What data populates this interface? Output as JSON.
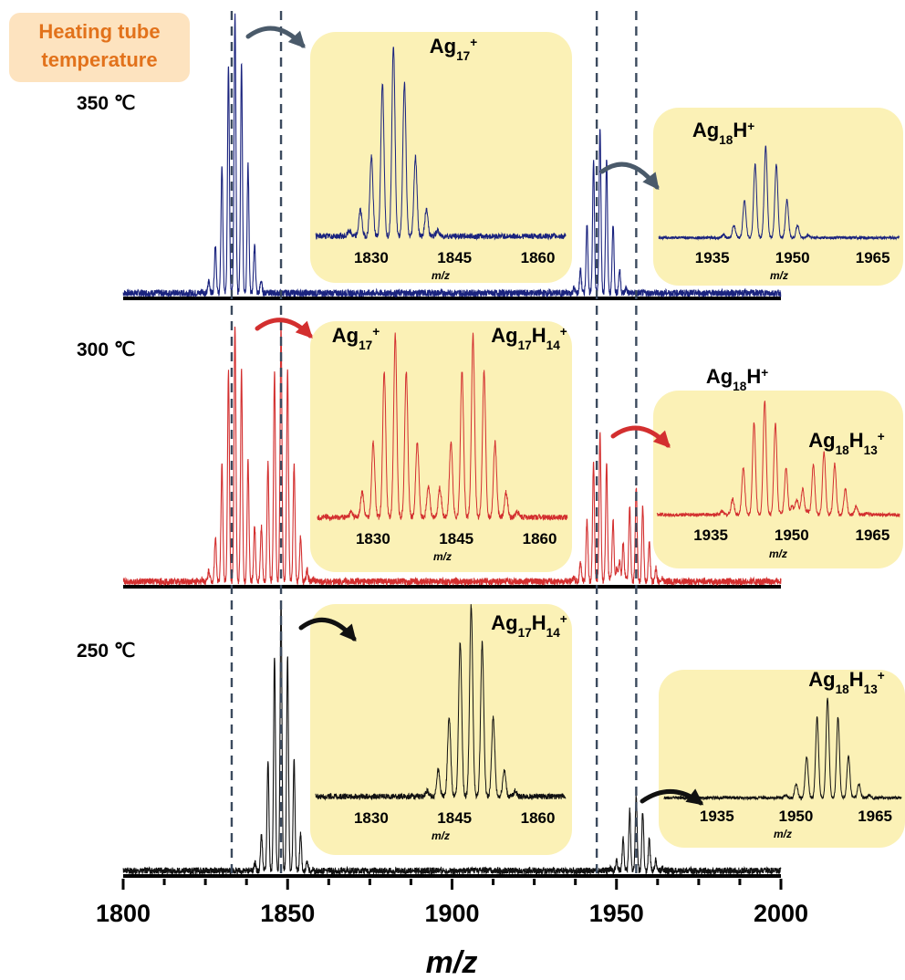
{
  "legend_box": {
    "line1": "Heating tube",
    "line2": "temperature"
  },
  "colors": {
    "t350": "#1a237e",
    "t300": "#d32f2f",
    "t250": "#111111",
    "inset_bg": "#fbf1b6",
    "legend_bg": "#fde3bf",
    "legend_text": "#e2721b",
    "dash": "#3b4a5e"
  },
  "chart_data": {
    "type": "line",
    "xlabel": "m/z",
    "xlim": [
      1800,
      2000
    ],
    "x_ticks": [
      "1800",
      "1850",
      "1900",
      "1950",
      "2000"
    ],
    "reference_lines_mz": [
      1833,
      1848,
      1944,
      1956
    ],
    "panels": [
      {
        "temperature": "350 ℃",
        "color": "#1a237e",
        "peak_groups": [
          {
            "center": 1834,
            "sigma": 3.2,
            "height": 1.0
          },
          {
            "center": 1945,
            "sigma": 3.0,
            "height": 0.6
          }
        ],
        "insets": [
          {
            "labels": [
              {
                "base": "Ag",
                "sub": "17",
                "sup": "+"
              }
            ],
            "xlim": [
              1820,
              1865
            ],
            "ticks": [
              "1830",
              "1845",
              "1860"
            ],
            "xlabel": "m/z",
            "peak_groups": [
              {
                "center": 1834,
                "sigma": 3.0,
                "height": 1.0
              }
            ]
          },
          {
            "labels": [
              {
                "base": "Ag",
                "sub": "18",
                "mid": "H",
                "sup": "+"
              }
            ],
            "xlim": [
              1925,
              1970
            ],
            "ticks": [
              "1935",
              "1950",
              "1965"
            ],
            "xlabel": "m/z",
            "peak_groups": [
              {
                "center": 1945,
                "sigma": 3.0,
                "height": 1.0
              }
            ]
          }
        ]
      },
      {
        "temperature": "300 ℃",
        "color": "#d32f2f",
        "peak_groups": [
          {
            "center": 1834,
            "sigma": 3.2,
            "height": 0.95
          },
          {
            "center": 1848,
            "sigma": 3.2,
            "height": 0.95
          },
          {
            "center": 1945,
            "sigma": 3.0,
            "height": 0.55
          },
          {
            "center": 1956,
            "sigma": 3.0,
            "height": 0.35
          }
        ],
        "insets": [
          {
            "labels": [
              {
                "base": "Ag",
                "sub": "17",
                "sup": "+"
              },
              {
                "base": "Ag",
                "sub": "17",
                "mid": "H",
                "sub2": "14",
                "sup": "+"
              }
            ],
            "xlim": [
              1820,
              1865
            ],
            "ticks": [
              "1830",
              "1845",
              "1860"
            ],
            "xlabel": "m/z",
            "peak_groups": [
              {
                "center": 1834,
                "sigma": 3.0,
                "height": 0.95
              },
              {
                "center": 1848,
                "sigma": 3.0,
                "height": 0.95
              }
            ]
          },
          {
            "labels": [
              {
                "base": "Ag",
                "sub": "18",
                "mid": "H",
                "sup": "+"
              },
              {
                "base": "Ag",
                "sub": "18",
                "mid": "H",
                "sub2": "13",
                "sup": "+"
              }
            ],
            "xlim": [
              1925,
              1970
            ],
            "ticks": [
              "1935",
              "1950",
              "1965"
            ],
            "xlabel": "m/z",
            "peak_groups": [
              {
                "center": 1945,
                "sigma": 3.0,
                "height": 1.0
              },
              {
                "center": 1956,
                "sigma": 3.0,
                "height": 0.55
              }
            ]
          }
        ]
      },
      {
        "temperature": "250 ℃",
        "color": "#111111",
        "peak_groups": [
          {
            "center": 1848,
            "sigma": 3.0,
            "height": 1.0
          },
          {
            "center": 1956,
            "sigma": 3.0,
            "height": 0.28
          }
        ],
        "insets": [
          {
            "labels": [
              {
                "base": "Ag",
                "sub": "17",
                "mid": "H",
                "sub2": "14",
                "sup": "+"
              }
            ],
            "xlim": [
              1820,
              1865
            ],
            "ticks": [
              "1830",
              "1845",
              "1860"
            ],
            "xlabel": "m/z",
            "peak_groups": [
              {
                "center": 1848,
                "sigma": 3.0,
                "height": 1.0
              }
            ]
          },
          {
            "labels": [
              {
                "base": "Ag",
                "sub": "18",
                "mid": "H",
                "sub2": "13",
                "sup": "+"
              }
            ],
            "xlim": [
              1925,
              1970
            ],
            "ticks": [
              "1935",
              "1950",
              "1965"
            ],
            "xlabel": "m/z",
            "peak_groups": [
              {
                "center": 1956,
                "sigma": 3.0,
                "height": 1.0
              }
            ]
          }
        ]
      }
    ]
  }
}
